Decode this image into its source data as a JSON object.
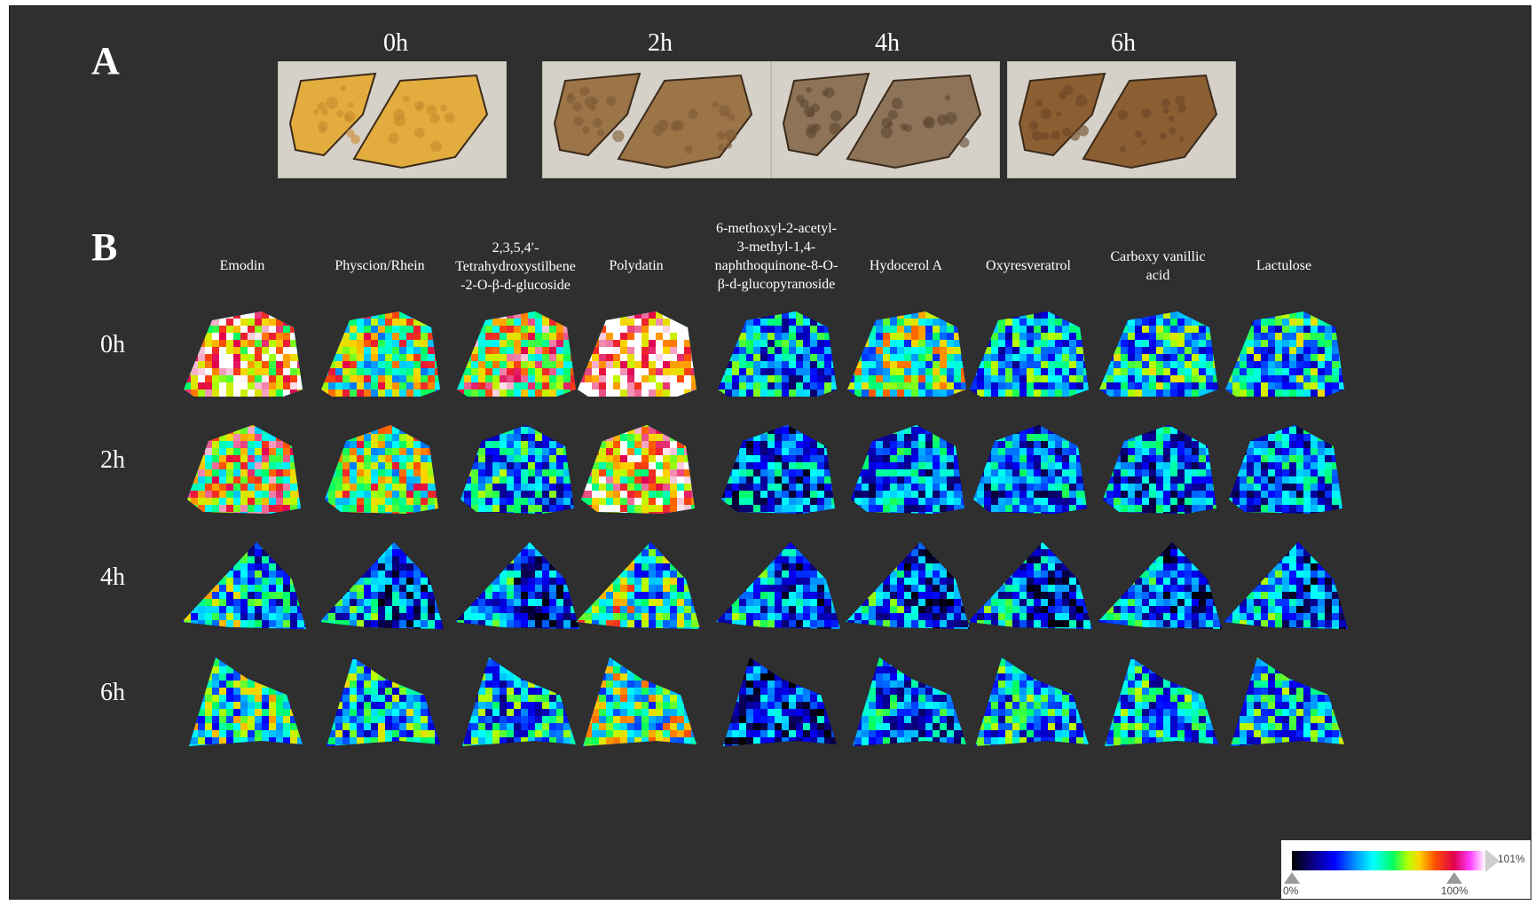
{
  "panel_a": {
    "letter": "A",
    "photos": [
      {
        "time": "0h",
        "tone": "#e2ad3e",
        "spot": "#c98a2e"
      },
      {
        "time": "2h",
        "tone": "#9b7447",
        "spot": "#7d5a35"
      },
      {
        "time": "4h",
        "tone": "#8d7459",
        "spot": "#5e4632"
      },
      {
        "time": "6h",
        "tone": "#8c5f33",
        "spot": "#6a4424"
      }
    ]
  },
  "panel_b": {
    "letter": "B",
    "compounds": [
      "Emodin",
      "Physcion/Rhein",
      "2,3,5,4′-\nTetrahydroxystilbene\n-2-O-β-d-glucoside",
      "Polydatin",
      "6-methoxyl-2-acetyl-\n3-methyl-1,4-\nnaphthoquinone-8-O-\nβ-d-glucopyranoside",
      "Hydocerol A",
      "Oxyresveratrol",
      "Carboxy vanillic\nacid",
      "Lactulose"
    ],
    "rows": [
      "0h",
      "2h",
      "4h",
      "6h"
    ],
    "intensity_grid": [
      [
        0.85,
        0.62,
        0.72,
        0.95,
        0.38,
        0.55,
        0.4,
        0.45,
        0.45
      ],
      [
        0.7,
        0.62,
        0.4,
        0.78,
        0.3,
        0.33,
        0.32,
        0.33,
        0.33
      ],
      [
        0.45,
        0.35,
        0.33,
        0.55,
        0.35,
        0.33,
        0.34,
        0.33,
        0.35
      ],
      [
        0.5,
        0.45,
        0.4,
        0.55,
        0.25,
        0.35,
        0.42,
        0.4,
        0.42
      ]
    ]
  },
  "colorbar": {
    "min_label": "0%",
    "max_label": "100%",
    "clip_label": "101%",
    "colors": [
      "#000000",
      "#0000ff",
      "#00ffff",
      "#00ff64",
      "#ffd200",
      "#e00050",
      "#ffffff"
    ]
  }
}
